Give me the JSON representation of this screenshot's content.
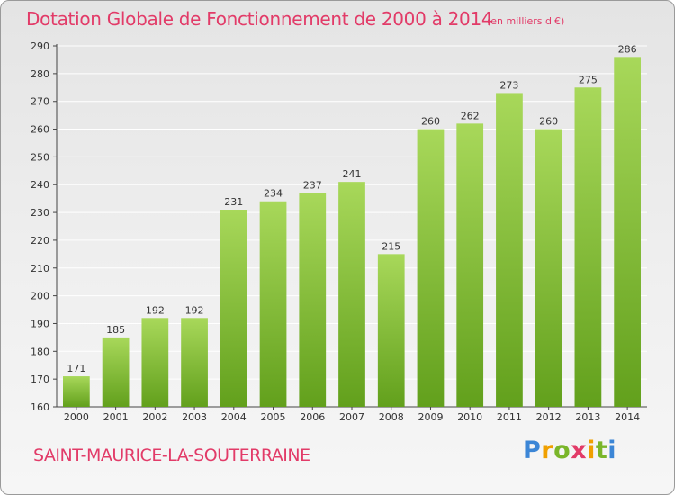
{
  "title": "Dotation Globale de Fonctionnement de 2000 à 2014",
  "unit_note": "(en milliers d'€)",
  "commune": "SAINT-MAURICE-LA-SOUTERRAINE",
  "logo": {
    "letters": [
      "P",
      "r",
      "o",
      "x",
      "i",
      "t",
      "i"
    ]
  },
  "colors": {
    "accent": "#e23b68",
    "bar_light": "#a8d85a",
    "bar_dark": "#62a01c",
    "grid": "#ffffff",
    "logo_blue": "#3c86d6",
    "logo_orange": "#f0a000",
    "logo_green": "#7ab62a"
  },
  "chart_data": {
    "type": "bar",
    "categories": [
      "2000",
      "2001",
      "2002",
      "2003",
      "2004",
      "2005",
      "2006",
      "2007",
      "2008",
      "2009",
      "2010",
      "2011",
      "2012",
      "2013",
      "2014"
    ],
    "values": [
      171,
      185,
      192,
      192,
      231,
      234,
      237,
      241,
      215,
      260,
      262,
      273,
      260,
      275,
      286
    ],
    "title": "Dotation Globale de Fonctionnement de 2000 à 2014",
    "ylim": [
      160,
      290
    ],
    "yticks": [
      160,
      170,
      180,
      190,
      200,
      210,
      220,
      230,
      240,
      250,
      260,
      270,
      280,
      290
    ],
    "grid": true
  }
}
